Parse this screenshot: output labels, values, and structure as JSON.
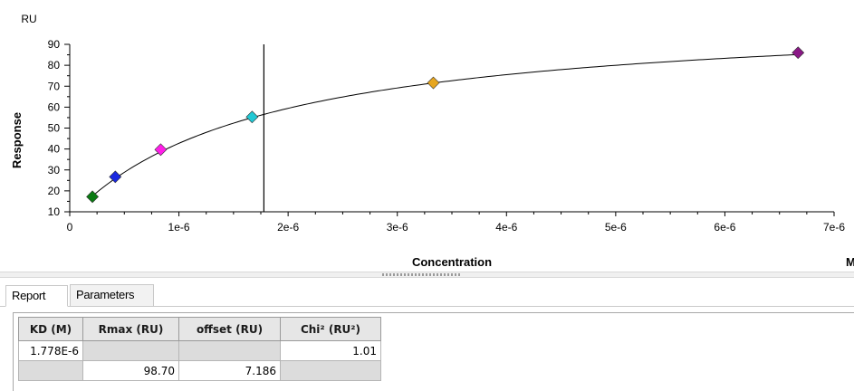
{
  "chart_data": {
    "type": "scatter",
    "title": "",
    "y_unit": "RU",
    "ylabel": "Response",
    "xlabel": "Concentration",
    "x_unit": "M",
    "xlim": [
      0,
      7e-06
    ],
    "ylim": [
      10,
      90
    ],
    "x_ticks": [
      {
        "value": 0,
        "label": "0"
      },
      {
        "value": 1e-06,
        "label": "1e-6"
      },
      {
        "value": 2e-06,
        "label": "2e-6"
      },
      {
        "value": 3e-06,
        "label": "3e-6"
      },
      {
        "value": 4e-06,
        "label": "4e-6"
      },
      {
        "value": 5e-06,
        "label": "5e-6"
      },
      {
        "value": 6e-06,
        "label": "6e-6"
      },
      {
        "value": 7e-06,
        "label": "7e-6"
      }
    ],
    "y_ticks": [
      {
        "value": 10,
        "label": "10"
      },
      {
        "value": 20,
        "label": "20"
      },
      {
        "value": 30,
        "label": "30"
      },
      {
        "value": 40,
        "label": "40"
      },
      {
        "value": 50,
        "label": "50"
      },
      {
        "value": 60,
        "label": "60"
      },
      {
        "value": 70,
        "label": "70"
      },
      {
        "value": 80,
        "label": "80"
      },
      {
        "value": 90,
        "label": "90"
      }
    ],
    "grid": false,
    "points": [
      {
        "x": 2.08e-07,
        "y": 17.2,
        "color": "#0a7a12"
      },
      {
        "x": 4.17e-07,
        "y": 26.7,
        "color": "#1a28e0"
      },
      {
        "x": 8.33e-07,
        "y": 39.7,
        "color": "#ff1ee8"
      },
      {
        "x": 1.67e-06,
        "y": 55.3,
        "color": "#22c8d4"
      },
      {
        "x": 3.33e-06,
        "y": 71.6,
        "color": "#e6a620"
      },
      {
        "x": 6.67e-06,
        "y": 86.0,
        "color": "#8a1886"
      }
    ],
    "fit": {
      "model": "steady-state affinity",
      "KD": 1.778e-06,
      "Rmax": 98.7,
      "offset": 7.186
    },
    "kd_marker_x": 1.778e-06
  },
  "tabs": [
    {
      "label": "Report"
    },
    {
      "label": "Parameters"
    }
  ],
  "report_table": {
    "headers": [
      "KD (M)",
      "Rmax (RU)",
      "offset (RU)",
      "Chi² (RU²)"
    ],
    "rows": [
      [
        "1.778E-6",
        "",
        "",
        "1.01"
      ],
      [
        "",
        "98.70",
        "7.186",
        ""
      ]
    ],
    "fixed_cells": [
      [
        0,
        1
      ],
      [
        0,
        2
      ],
      [
        1,
        0
      ],
      [
        1,
        3
      ]
    ]
  }
}
